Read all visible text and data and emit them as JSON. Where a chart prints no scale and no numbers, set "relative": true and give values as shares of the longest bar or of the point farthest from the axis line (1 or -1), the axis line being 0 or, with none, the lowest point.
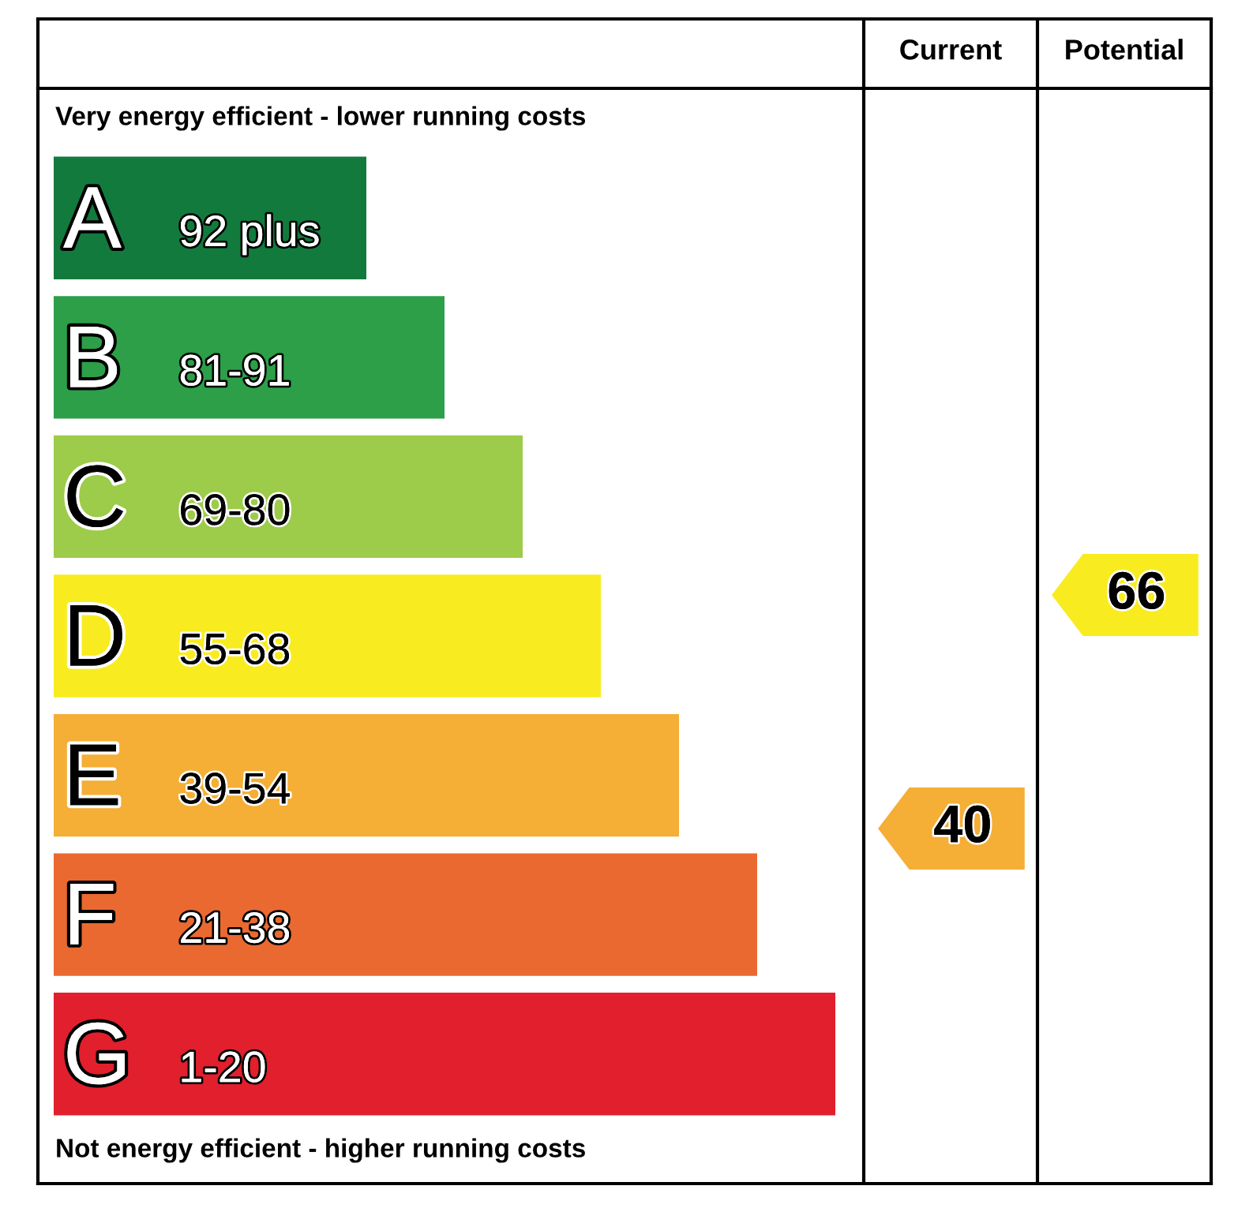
{
  "chart_data": {
    "type": "bar",
    "orientation": "horizontal",
    "relative": true,
    "title": "Very energy efficient - lower running costs",
    "categories": [
      "A 92 plus",
      "B 81-91",
      "C 69-80",
      "D 55-68",
      "E 39-54",
      "F 21-38",
      "G 1-20"
    ],
    "values": [
      0.4,
      0.5,
      0.6,
      0.7,
      0.8,
      0.9,
      1
    ],
    "colors": [
      "#127a3d",
      "#2c9f48",
      "#9dcb4a",
      "#f8ec20",
      "#f5ae36",
      "#ea6930",
      "#e11f2d"
    ],
    "annotations": [
      "Current",
      "Potential",
      "40",
      "66",
      "Not energy efficient - higher running costs"
    ]
  }
}
